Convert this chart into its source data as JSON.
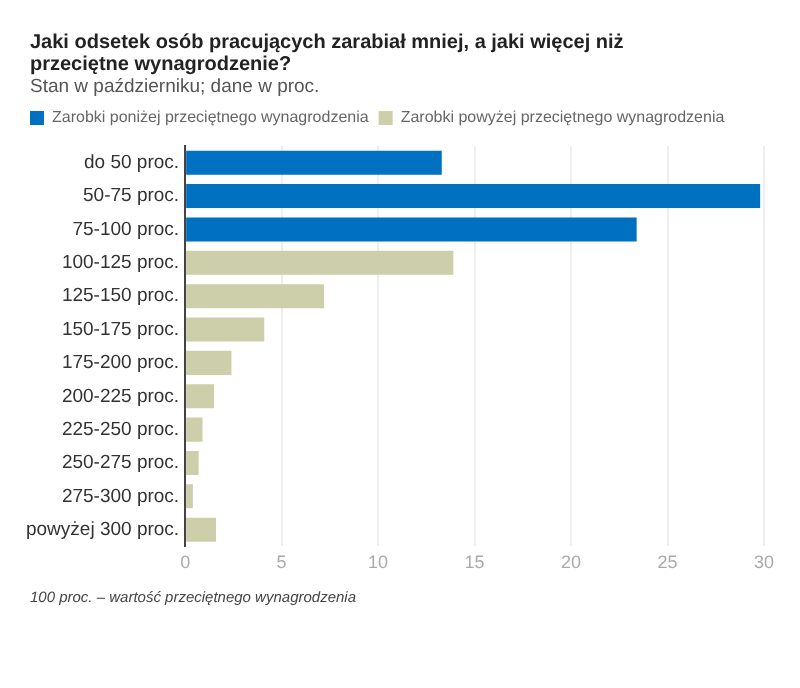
{
  "chart_data": {
    "type": "bar",
    "orientation": "horizontal",
    "title": "Jaki odsetek osób pracujących zarabiał mniej, a jaki więcej niż przeciętne wynagrodzenie?",
    "subtitle": "Stan w październiku; dane w proc.",
    "categories": [
      "do 50 proc.",
      "50-75 proc.",
      "75-100 proc.",
      "100-125 proc.",
      "125-150 proc.",
      "150-175 proc.",
      "175-200 proc.",
      "200-225 proc.",
      "225-250 proc.",
      "250-275 proc.",
      "275-300 proc.",
      "powyżej 300 proc."
    ],
    "series": [
      {
        "name": "Zarobki poniżej przeciętnego wynagrodzenia",
        "color": "#0070c0",
        "values": [
          13.3,
          29.8,
          23.4,
          null,
          null,
          null,
          null,
          null,
          null,
          null,
          null,
          null
        ]
      },
      {
        "name": "Zarobki powyżej przeciętnego wynagrodzenia",
        "color": "#cccfaa",
        "values": [
          null,
          null,
          null,
          13.9,
          7.2,
          4.1,
          2.4,
          1.5,
          0.9,
          0.7,
          0.4,
          1.6
        ]
      }
    ],
    "xlim": [
      0,
      30
    ],
    "xticks": [
      0,
      5,
      10,
      15,
      20,
      25,
      30
    ],
    "grid": "x",
    "legend": "top left",
    "annotations": [
      "100 proc. – wartość przeciętnego wynagrodzenia"
    ]
  }
}
